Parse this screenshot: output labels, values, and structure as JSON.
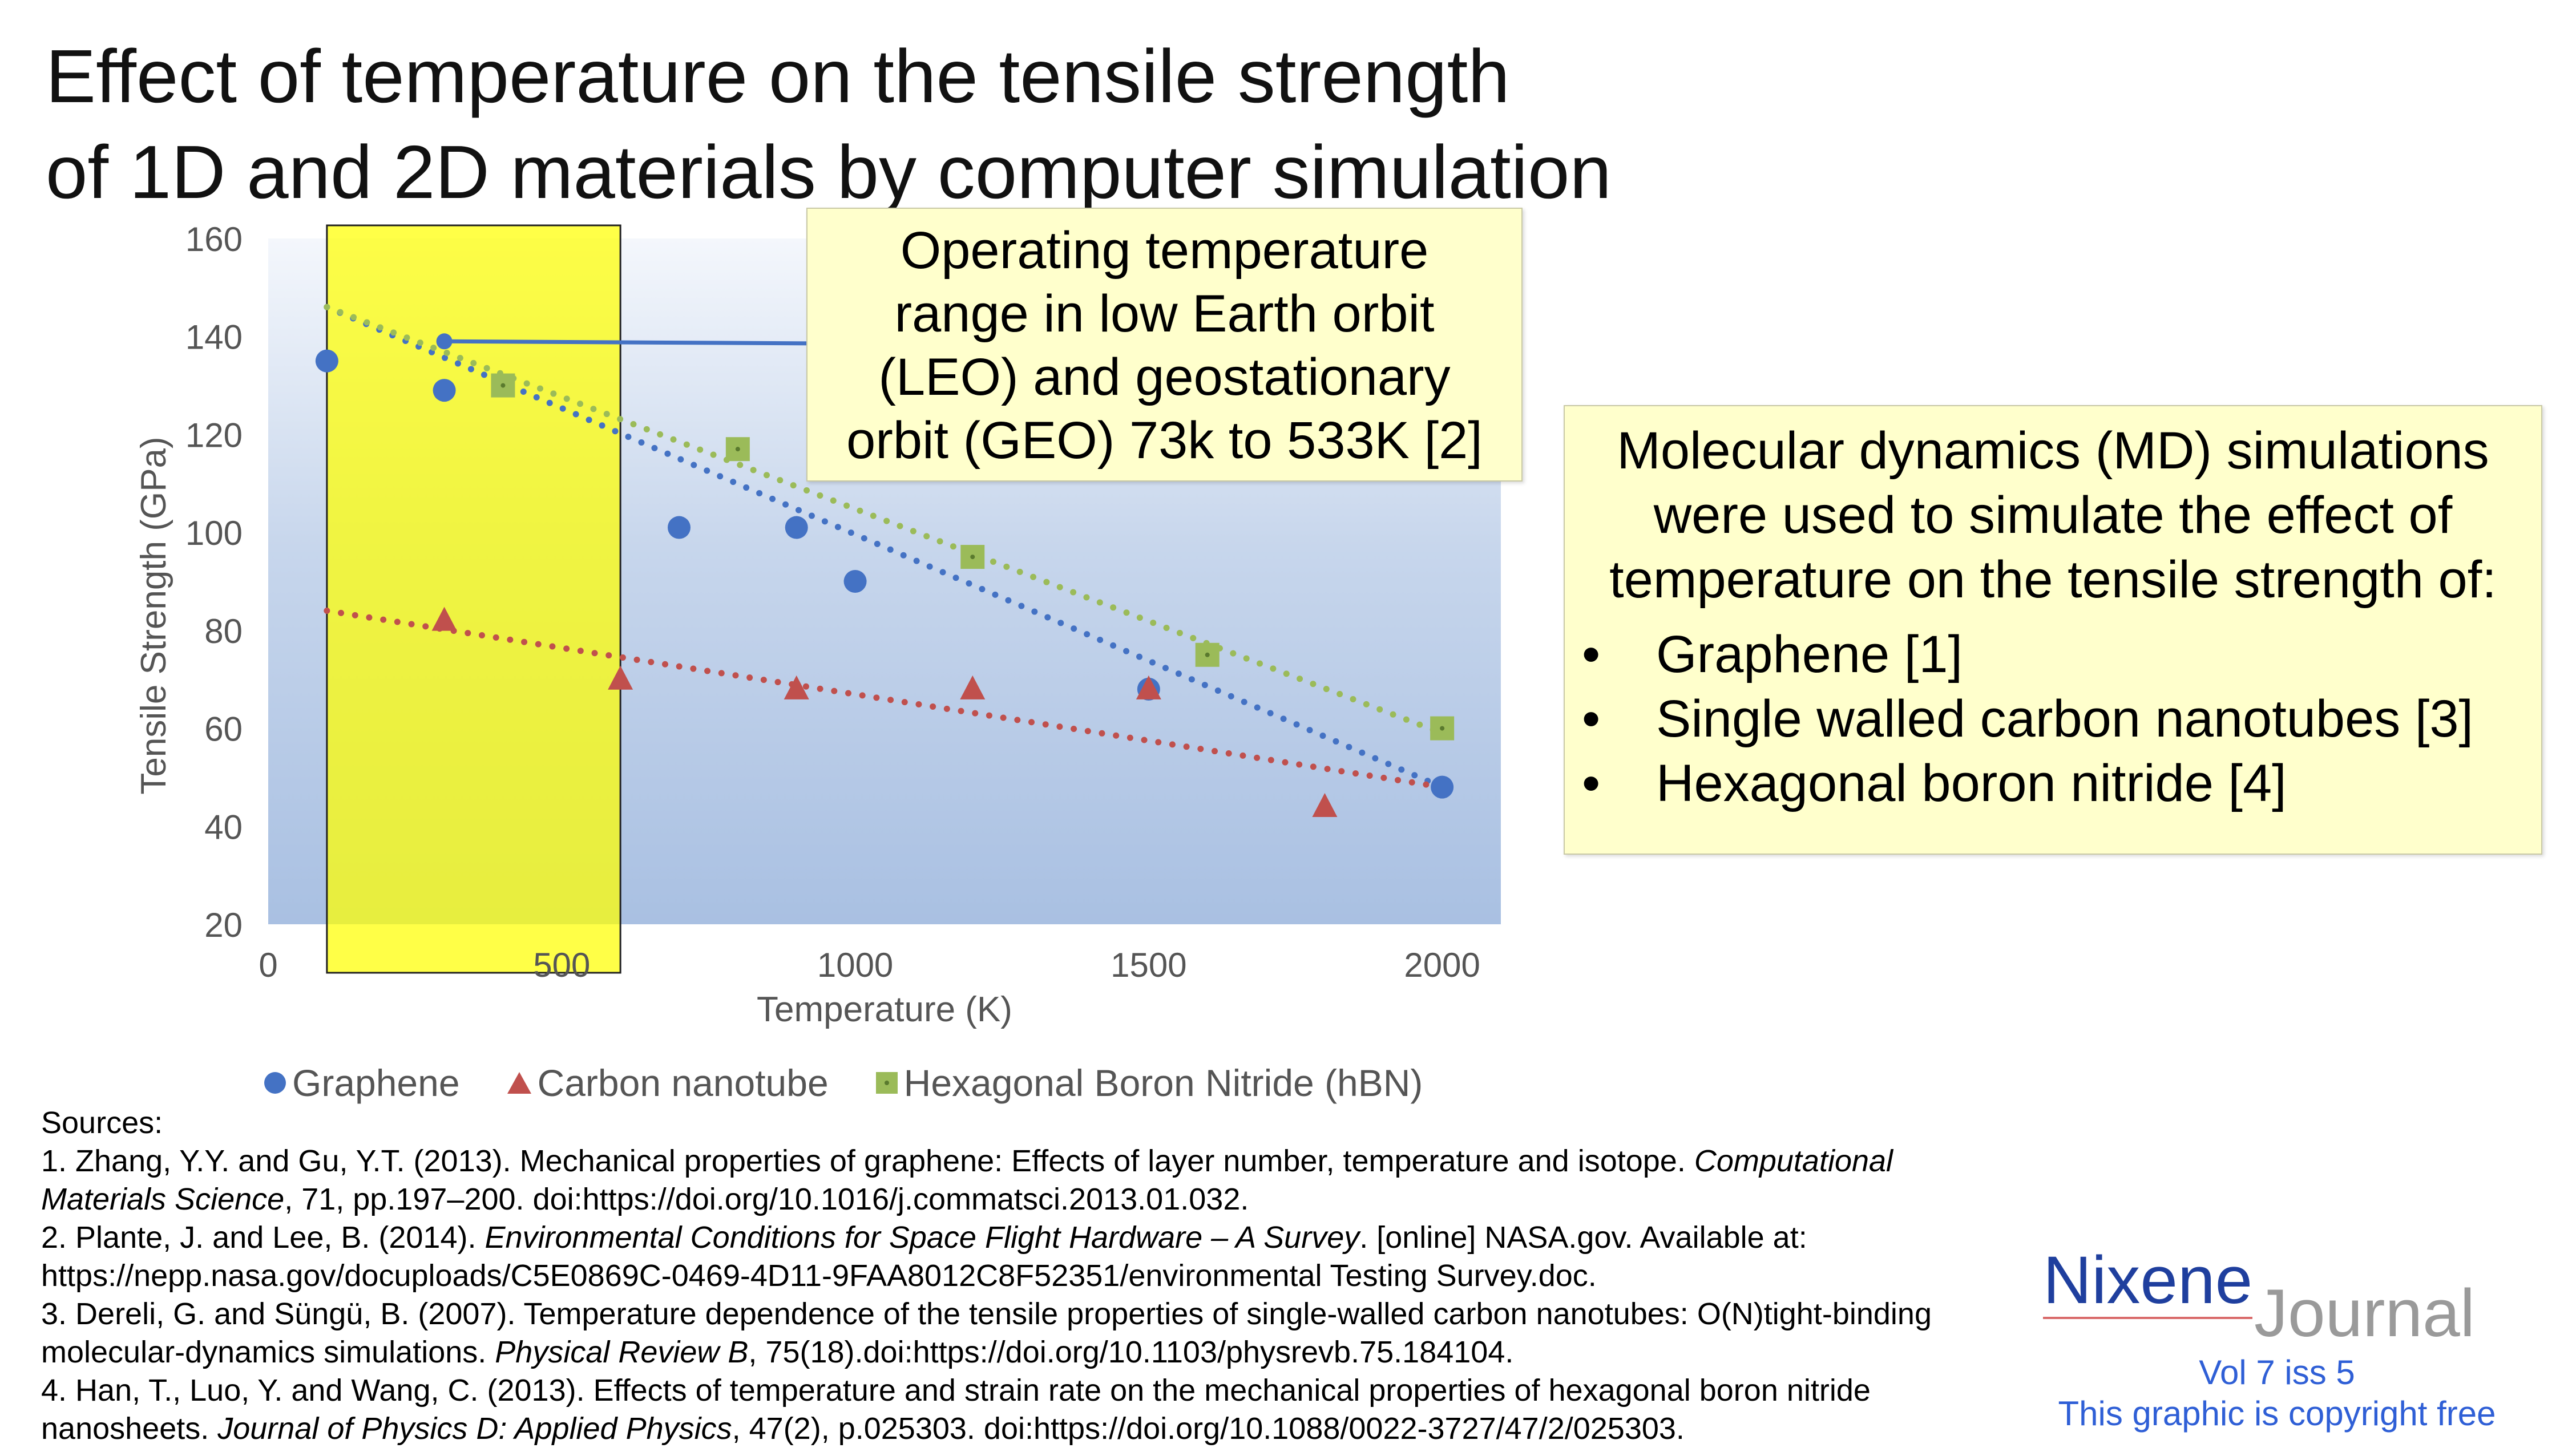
{
  "title": {
    "line1": "Effect of temperature on the tensile strength",
    "line2": "of 1D and 2D materials by computer simulation"
  },
  "chart_data": {
    "type": "scatter",
    "xlabel": "Temperature (K)",
    "ylabel": "Tensile Strength (GPa)",
    "xlim": [
      0,
      2100
    ],
    "ylim": [
      20,
      160
    ],
    "x_ticks": [
      0,
      500,
      1000,
      1500,
      2000
    ],
    "y_ticks": [
      20,
      40,
      60,
      80,
      100,
      120,
      140,
      160
    ],
    "trendlines": "linear, dotted",
    "legend_position": "bottom",
    "series": [
      {
        "name": "Graphene",
        "marker": "circle",
        "color": "#4472c4",
        "x": [
          100,
          300,
          700,
          900,
          1000,
          1500,
          2000
        ],
        "y": [
          135,
          129,
          101,
          101,
          90,
          68,
          48
        ],
        "trend": [
          [
            100,
            146
          ],
          [
            2000,
            48
          ]
        ]
      },
      {
        "name": "Carbon nanotube",
        "marker": "triangle",
        "color": "#c0504d",
        "x": [
          300,
          600,
          900,
          1200,
          1500,
          1800
        ],
        "y": [
          82,
          70,
          68,
          68,
          68,
          44
        ],
        "trend": [
          [
            100,
            84
          ],
          [
            2000,
            48
          ]
        ]
      },
      {
        "name": "Hexagonal Boron Nitride (hBN)",
        "marker": "square",
        "color": "#9bbb59",
        "x": [
          400,
          800,
          1200,
          1600,
          2000
        ],
        "y": [
          130,
          117,
          95,
          75,
          60
        ],
        "trend": [
          [
            100,
            146
          ],
          [
            2000,
            59
          ]
        ]
      },
      {
        "name": "LEO/GEO",
        "marker": "circle",
        "color": "#4472c4",
        "x": [
          300,
          1000
        ],
        "y": [
          139,
          139
        ]
      }
    ],
    "highlight_band": {
      "x_from": 100,
      "x_to": 600,
      "color": "#ffff00"
    }
  },
  "operating_box": {
    "line1": "Operating temperature",
    "line2": "range in low Earth orbit",
    "line3": "(LEO) and geostationary",
    "line4": "orbit (GEO) 73k to 533K [2]"
  },
  "md_box": {
    "intro": "Molecular dynamics (MD) simulations were used to simulate the effect of temperature on the tensile strength of:",
    "bullet_char": "•",
    "items": [
      "Graphene [1]",
      "Single walled carbon nanotubes [3]",
      "Hexagonal boron nitride [4]"
    ]
  },
  "legend": {
    "graphene": "Graphene",
    "cnt": "Carbon nanotube",
    "hbn": "Hexagonal Boron Nitride (hBN)"
  },
  "sources": {
    "heading": "Sources:",
    "s1_a": "1. Zhang, Y.Y. and Gu, Y.T. (2013). Mechanical properties of graphene: Effects of layer number, temperature and isotope. ",
    "s1_i": "Computational Materials Science",
    "s1_b": ", 71, pp.197–200. doi:https://doi.org/10.1016/j.commatsci.2013.01.032.",
    "s2_a": "2. Plante, J. and Lee, B. (2014). ",
    "s2_i": "Environmental Conditions for Space Flight Hardware – A Survey",
    "s2_b": ". [online] NASA.gov.  Available at: https://nepp.nasa.gov/docuploads/C5E0869C-0469-4D11-9FAA8012C8F52351/environmental Testing Survey.doc.",
    "s3_a": "3. Dereli, G. and Süngü, B. (2007). Temperature dependence of the tensile properties of single-walled carbon nanotubes: O(N)tight-binding molecular-dynamics simulations. ",
    "s3_i": "Physical Review B",
    "s3_b": ", 75(18).doi:https://doi.org/10.1103/physrevb.75.184104.",
    "s4_a": "4. Han, T., Luo, Y. and Wang, C. (2013). Effects of temperature and strain rate on the mechanical properties of hexagonal boron nitride nanosheets. ",
    "s4_i": "Journal of Physics D: Applied Physics",
    "s4_b": ", 47(2), p.025303. doi:https://doi.org/10.1088/0022-3727/47/2/025303."
  },
  "logo": {
    "nixene": "Nixene",
    "journal": "Journal",
    "vol": "Vol 7 iss 5",
    "copyright": "This graphic is copyright free"
  }
}
